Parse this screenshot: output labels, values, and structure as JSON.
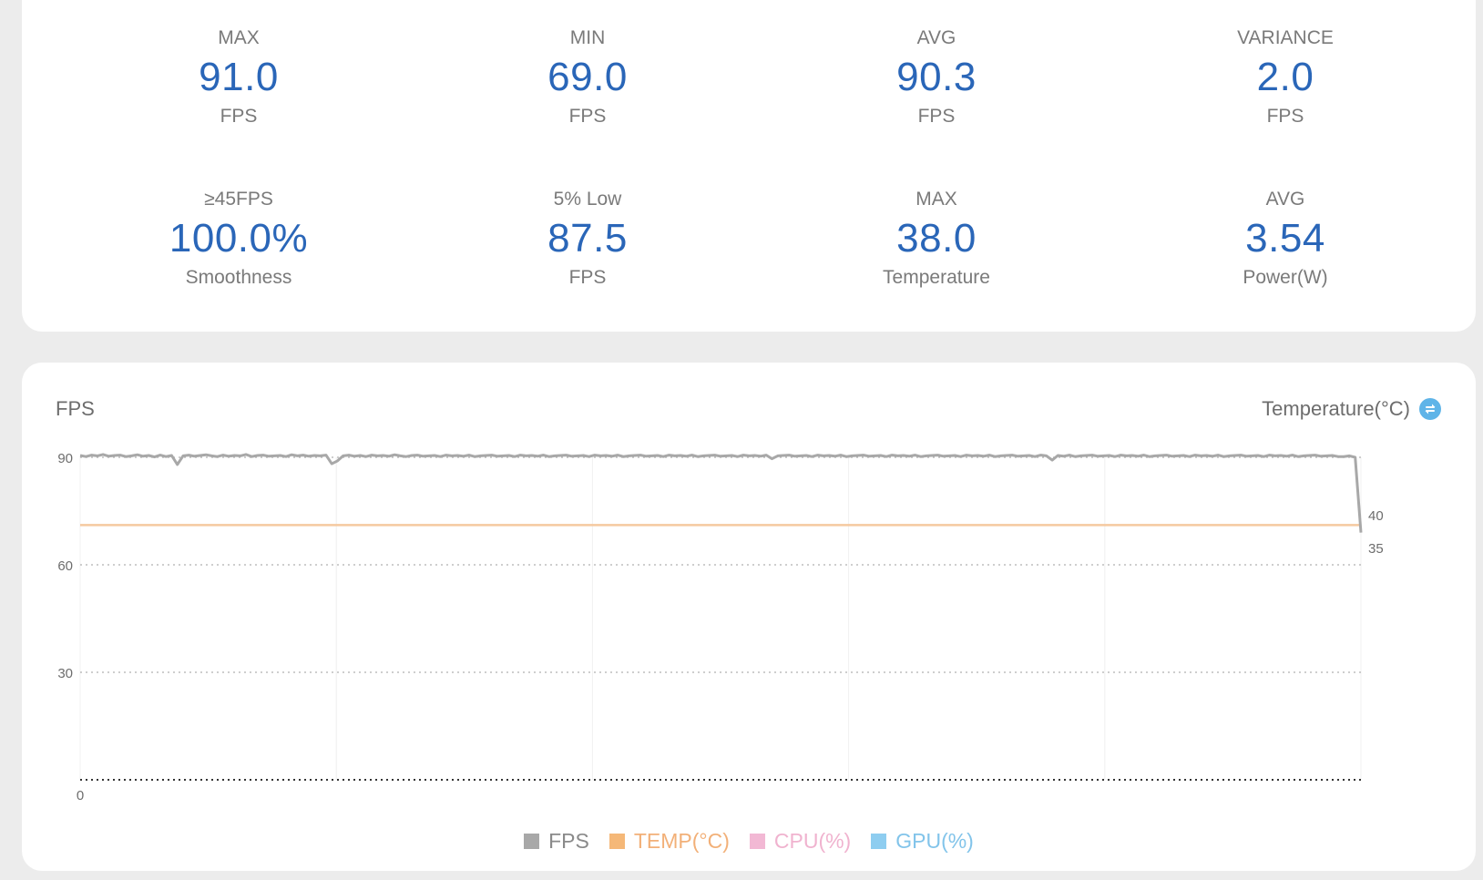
{
  "stats": [
    {
      "label": "MAX",
      "value": "91.0",
      "unit": "FPS"
    },
    {
      "label": "MIN",
      "value": "69.0",
      "unit": "FPS"
    },
    {
      "label": "AVG",
      "value": "90.3",
      "unit": "FPS"
    },
    {
      "label": "VARIANCE",
      "value": "2.0",
      "unit": "FPS"
    },
    {
      "label": "≥45FPS",
      "value": "100.0%",
      "unit": "Smoothness"
    },
    {
      "label": "5% Low",
      "value": "87.5",
      "unit": "FPS"
    },
    {
      "label": "MAX",
      "value": "38.0",
      "unit": "Temperature"
    },
    {
      "label": "AVG",
      "value": "3.54",
      "unit": "Power(W)"
    }
  ],
  "chart": {
    "left_title": "FPS",
    "right_title": "Temperature(°C)",
    "toggle_icon": "swap-icon"
  },
  "legend": [
    {
      "label": "FPS",
      "color": "#a8a8a8"
    },
    {
      "label": "TEMP(°C)",
      "color": "#f5b878"
    },
    {
      "label": "CPU(%)",
      "color": "#f2b8d4"
    },
    {
      "label": "GPU(%)",
      "color": "#8ecdf0"
    }
  ],
  "chart_data": {
    "type": "line",
    "title": "",
    "xlabel": "",
    "ylabel": "FPS",
    "y2label": "Temperature(°C)",
    "ylim": [
      0,
      90
    ],
    "y_ticks": [
      0,
      30,
      60,
      90
    ],
    "y2_ticks": [
      35,
      40
    ],
    "y2_range": [
      35,
      40
    ],
    "grid": true,
    "legend_position": "bottom",
    "series": [
      {
        "name": "FPS",
        "axis": "left",
        "values": [
          90.5,
          90.2,
          90.6,
          90.4,
          90.8,
          90.3,
          90.5,
          90.6,
          90.2,
          90.4,
          90.7,
          90.3,
          90.5,
          90.1,
          90.6,
          90.2,
          90.5,
          88.0,
          90.4,
          90.6,
          90.3,
          90.5,
          90.7,
          90.4,
          90.2,
          90.6,
          90.3,
          90.5,
          90.4,
          90.8,
          90.2,
          90.5,
          90.6,
          90.3,
          90.4,
          90.5,
          90.2,
          90.7,
          90.4,
          90.6,
          90.3,
          90.5,
          90.4,
          90.6,
          88.2,
          89.0,
          90.4,
          90.6,
          90.3,
          90.5,
          90.2,
          90.6,
          90.4,
          90.5,
          90.3,
          90.7,
          90.4,
          90.2,
          90.5,
          90.6,
          90.3,
          90.4,
          90.5,
          90.2,
          90.6,
          90.4,
          90.5,
          90.3,
          90.6,
          90.2,
          90.4,
          90.5,
          90.6,
          90.3,
          90.4,
          90.5,
          90.2,
          90.6,
          90.4,
          90.5,
          90.3,
          90.6,
          90.2,
          90.4,
          90.5,
          90.6,
          90.3,
          90.4,
          90.5,
          90.2,
          90.6,
          90.4,
          90.5,
          90.3,
          90.6,
          90.2,
          90.4,
          90.5,
          90.6,
          90.3,
          90.4,
          90.5,
          90.2,
          90.6,
          90.4,
          90.5,
          90.3,
          90.6,
          90.2,
          90.4,
          90.5,
          90.6,
          90.3,
          90.4,
          90.5,
          90.2,
          90.6,
          90.4,
          90.5,
          90.3,
          90.6,
          89.6,
          90.4,
          90.5,
          90.6,
          90.3,
          90.4,
          90.5,
          90.2,
          90.6,
          90.4,
          90.5,
          90.3,
          90.6,
          90.2,
          90.4,
          90.5,
          90.6,
          90.3,
          90.4,
          90.5,
          90.2,
          90.6,
          90.4,
          90.5,
          90.3,
          90.6,
          90.2,
          90.4,
          90.5,
          90.6,
          90.3,
          90.4,
          90.5,
          90.2,
          90.6,
          90.4,
          90.5,
          90.3,
          90.6,
          90.2,
          90.4,
          90.5,
          90.6,
          90.3,
          90.4,
          90.5,
          90.2,
          90.6,
          90.4,
          89.2,
          90.5,
          90.3,
          90.6,
          90.2,
          90.4,
          90.5,
          90.6,
          90.3,
          90.4,
          90.5,
          90.2,
          90.6,
          90.4,
          90.5,
          90.3,
          90.6,
          90.2,
          90.4,
          90.5,
          90.6,
          90.3,
          90.4,
          90.5,
          90.2,
          90.6,
          90.4,
          90.5,
          90.3,
          90.6,
          90.2,
          90.4,
          90.5,
          90.6,
          90.3,
          90.4,
          90.5,
          90.2,
          90.6,
          90.4,
          90.5,
          90.3,
          90.6,
          90.2,
          90.4,
          90.5,
          90.6,
          90.3,
          90.4,
          90.5,
          90.2,
          90.2,
          90.4,
          90.0,
          69.0
        ]
      },
      {
        "name": "TEMP(°C)",
        "axis": "right",
        "values": [
          38,
          38,
          38,
          38,
          38,
          38,
          38,
          38,
          38,
          38,
          38,
          38,
          38,
          38,
          38,
          38,
          38,
          38,
          38,
          38,
          38,
          38,
          38,
          38,
          38,
          38,
          38,
          38,
          38,
          38
        ]
      }
    ]
  }
}
